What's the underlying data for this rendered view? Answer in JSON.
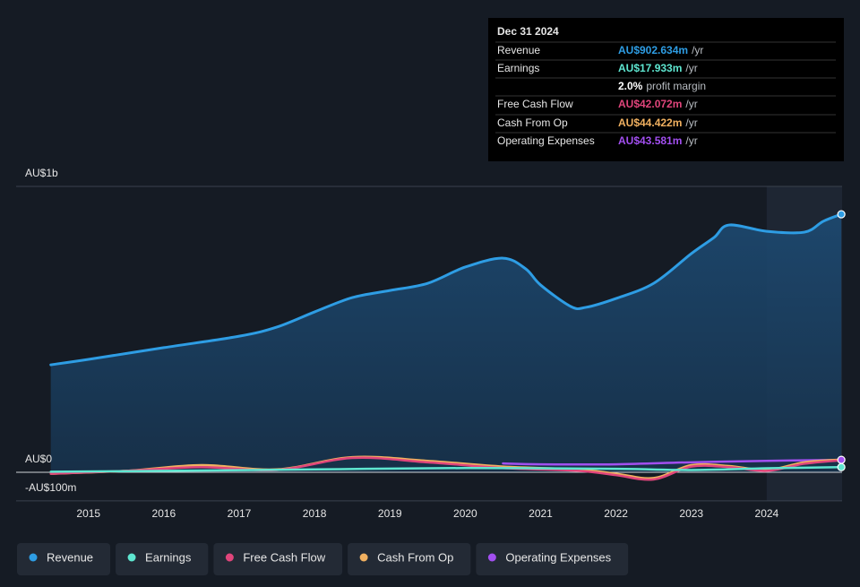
{
  "chart_data": {
    "type": "line",
    "xlim": [
      2014.04,
      2025.0
    ],
    "xticks": [
      2015,
      2016,
      2017,
      2018,
      2019,
      2020,
      2021,
      2022,
      2023,
      2024
    ],
    "ylim": [
      -100,
      1000
    ],
    "yticks": [
      {
        "value": -100,
        "label": "-AU$100m"
      },
      {
        "value": 0,
        "label": "AU$0"
      },
      {
        "value": 1000,
        "label": "AU$1b"
      }
    ],
    "highlight_start": 2024,
    "series": [
      {
        "name": "Revenue",
        "color": "#2e9de4",
        "x": [
          2014.5,
          2015,
          2016,
          2017,
          2017.5,
          2018,
          2018.5,
          2019,
          2019.5,
          2020,
          2020.5,
          2020.8,
          2021,
          2021.4,
          2021.6,
          2022,
          2022.5,
          2023,
          2023.3,
          2023.5,
          2024,
          2024.5,
          2024.75,
          2024.99
        ],
        "values": [
          376,
          395,
          436,
          476,
          508,
          561,
          611,
          636,
          661,
          718,
          749,
          712,
          655,
          580,
          577,
          608,
          661,
          765,
          821,
          865,
          843,
          840,
          878,
          902.6
        ]
      },
      {
        "name": "Earnings",
        "color": "#5ee6d0",
        "x": [
          2014.5,
          2016,
          2018,
          2020,
          2022,
          2023,
          2024,
          2024.99
        ],
        "values": [
          2,
          5,
          10,
          15,
          12,
          8,
          14,
          17.9
        ]
      },
      {
        "name": "Free Cash Flow",
        "color": "#e0457b",
        "x": [
          2014.5,
          2015.5,
          2016.5,
          2017.5,
          2018.5,
          2019.5,
          2020.5,
          2021.5,
          2022,
          2022.5,
          2023,
          2023.5,
          2024,
          2024.5,
          2024.99
        ],
        "values": [
          -5,
          5,
          18,
          8,
          50,
          35,
          15,
          5,
          -10,
          -25,
          20,
          18,
          5,
          30,
          42.1
        ]
      },
      {
        "name": "Cash From Op",
        "color": "#f0b060",
        "x": [
          2014.5,
          2015.5,
          2016.5,
          2017.5,
          2018.5,
          2019.5,
          2020.5,
          2021.5,
          2022,
          2022.5,
          2023,
          2023.5,
          2024,
          2024.5,
          2024.99
        ],
        "values": [
          -5,
          5,
          25,
          10,
          53,
          40,
          20,
          10,
          -5,
          -20,
          25,
          22,
          8,
          35,
          44.4
        ]
      },
      {
        "name": "Operating Expenses",
        "color": "#a24ff0",
        "x": [
          2020.5,
          2021,
          2022,
          2023,
          2024,
          2024.99
        ],
        "values": [
          31,
          28,
          28,
          35,
          40,
          43.6
        ]
      }
    ],
    "tooltip": {
      "date": "Dec 31 2024",
      "rows": [
        {
          "label": "Revenue",
          "value": "AU$902.634m",
          "suffix": "/yr",
          "color": "#2e9de4"
        },
        {
          "label": "Earnings",
          "value": "AU$17.933m",
          "suffix": "/yr",
          "color": "#5ee6d0"
        },
        {
          "value": "2.0%",
          "suffix": "profit margin",
          "color": "#ffffff"
        },
        {
          "label": "Free Cash Flow",
          "value": "AU$42.072m",
          "suffix": "/yr",
          "color": "#e0457b"
        },
        {
          "label": "Cash From Op",
          "value": "AU$44.422m",
          "suffix": "/yr",
          "color": "#f0b060"
        },
        {
          "label": "Operating Expenses",
          "value": "AU$43.581m",
          "suffix": "/yr",
          "color": "#a24ff0"
        }
      ]
    }
  }
}
